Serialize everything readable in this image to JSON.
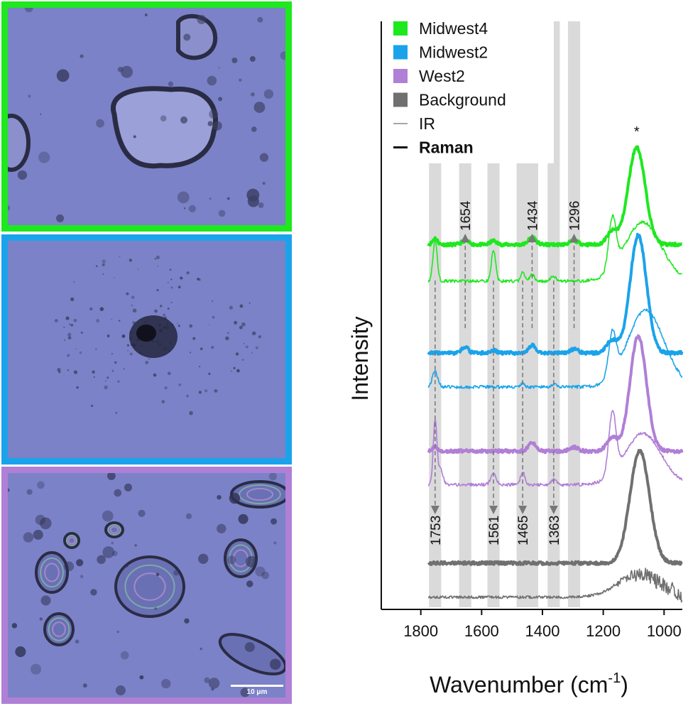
{
  "panels": [
    {
      "border_color": "#1ee81e",
      "particles": "irregular"
    },
    {
      "border_color": "#1aa3ea",
      "particles": "diffuse"
    },
    {
      "border_color": "#b07fd6",
      "particles": "droplets",
      "scale_bar": "10 μm"
    }
  ],
  "chart_data": {
    "type": "line",
    "xlabel": "Wavenumber (cm",
    "xlabel_sup": "-1",
    "xlabel_close": ")",
    "ylabel": "Intensity",
    "xlim": [
      1930,
      940
    ],
    "x_reversed": true,
    "xticks": [
      1800,
      1600,
      1400,
      1200,
      1000
    ],
    "xtick_labels": [
      "1800",
      "1600",
      "1400",
      "1200",
      "1000"
    ],
    "legend": {
      "placement": "top-left",
      "entries": [
        {
          "label": "Midwest4",
          "color": "#1ee81e",
          "symbol": "square"
        },
        {
          "label": "Midwest2",
          "color": "#1aa3ea",
          "symbol": "square"
        },
        {
          "label": "West2",
          "color": "#b07fd6",
          "symbol": "square"
        },
        {
          "label": "Background",
          "color": "#707070",
          "symbol": "square"
        },
        {
          "label": "IR",
          "color": "#707070",
          "symbol": "thin-line"
        },
        {
          "label": "Raman",
          "color": "#111111",
          "symbol": "thick-line",
          "bold": true
        }
      ]
    },
    "bands": [
      {
        "center": 1753,
        "width": 40
      },
      {
        "center": 1654,
        "width": 40
      },
      {
        "center": 1561,
        "width": 40
      },
      {
        "center": 1465,
        "width": 40
      },
      {
        "center": 1434,
        "width": 40
      },
      {
        "center": 1363,
        "width": 40
      },
      {
        "center": 1296,
        "width": 40
      }
    ],
    "annotations": [
      {
        "label": "1654",
        "x": 1654,
        "direction": "up"
      },
      {
        "label": "1434",
        "x": 1434,
        "direction": "up"
      },
      {
        "label": "1296",
        "x": 1296,
        "direction": "up"
      },
      {
        "label": "1753",
        "x": 1753,
        "direction": "down"
      },
      {
        "label": "1561",
        "x": 1561,
        "direction": "down"
      },
      {
        "label": "1465",
        "x": 1465,
        "direction": "down"
      },
      {
        "label": "1363",
        "x": 1363,
        "direction": "down"
      }
    ],
    "peak_marker": {
      "label": "*",
      "x": 1090
    },
    "series": [
      {
        "name": "Midwest4",
        "color": "#1ee81e",
        "raman": {
          "base": 0.85,
          "peaks": [
            [
              1090,
              3.8,
              28
            ],
            [
              1753,
              0.25,
              8
            ],
            [
              1654,
              0.15,
              12
            ],
            [
              1561,
              0.15,
              10
            ],
            [
              1434,
              0.3,
              12
            ],
            [
              1296,
              0.15,
              14
            ],
            [
              1170,
              0.5,
              18
            ]
          ]
        },
        "ir": {
          "base": 0.45,
          "peaks": [
            [
              1753,
              1.6,
              7
            ],
            [
              1561,
              1.2,
              7
            ],
            [
              1465,
              0.35,
              6
            ],
            [
              1434,
              0.25,
              8
            ],
            [
              1365,
              0.2,
              8
            ],
            [
              1170,
              2.0,
              12
            ],
            [
              1070,
              2.3,
              60
            ]
          ]
        }
      },
      {
        "name": "Midwest2",
        "color": "#1aa3ea",
        "raman": {
          "base": 0.5,
          "peaks": [
            [
              1085,
              4.6,
              27
            ],
            [
              1654,
              0.25,
              10
            ],
            [
              1561,
              0.1,
              10
            ],
            [
              1434,
              0.3,
              12
            ],
            [
              1296,
              0.15,
              14
            ],
            [
              1170,
              0.5,
              18
            ]
          ]
        },
        "ir": {
          "base": 0.2,
          "peaks": [
            [
              1753,
              0.6,
              9
            ],
            [
              1465,
              0.15,
              6
            ],
            [
              1363,
              0.1,
              8
            ],
            [
              1170,
              1.7,
              12
            ],
            [
              1060,
              3.0,
              60
            ]
          ]
        }
      },
      {
        "name": "West2",
        "color": "#b07fd6",
        "raman": {
          "base": 0.55,
          "peaks": [
            [
              1085,
              4.5,
              27
            ],
            [
              1753,
              0.15,
              8
            ],
            [
              1434,
              0.35,
              12
            ],
            [
              1296,
              0.15,
              14
            ],
            [
              1170,
              0.5,
              18
            ]
          ]
        },
        "ir": {
          "base": 0.35,
          "peaks": [
            [
              1753,
              2.5,
              6
            ],
            [
              1735,
              0.6,
              8
            ],
            [
              1561,
              0.4,
              9
            ],
            [
              1465,
              0.5,
              7
            ],
            [
              1363,
              0.2,
              8
            ],
            [
              1170,
              2.4,
              12
            ],
            [
              1070,
              2.0,
              60
            ]
          ]
        }
      },
      {
        "name": "Background",
        "color": "#707070",
        "raman": {
          "base": 0.2,
          "peaks": [
            [
              1080,
              4.4,
              32
            ]
          ]
        },
        "ir": {
          "base": 0.2,
          "peaks": [
            [
              1080,
              0.9,
              70
            ]
          ]
        }
      }
    ]
  }
}
